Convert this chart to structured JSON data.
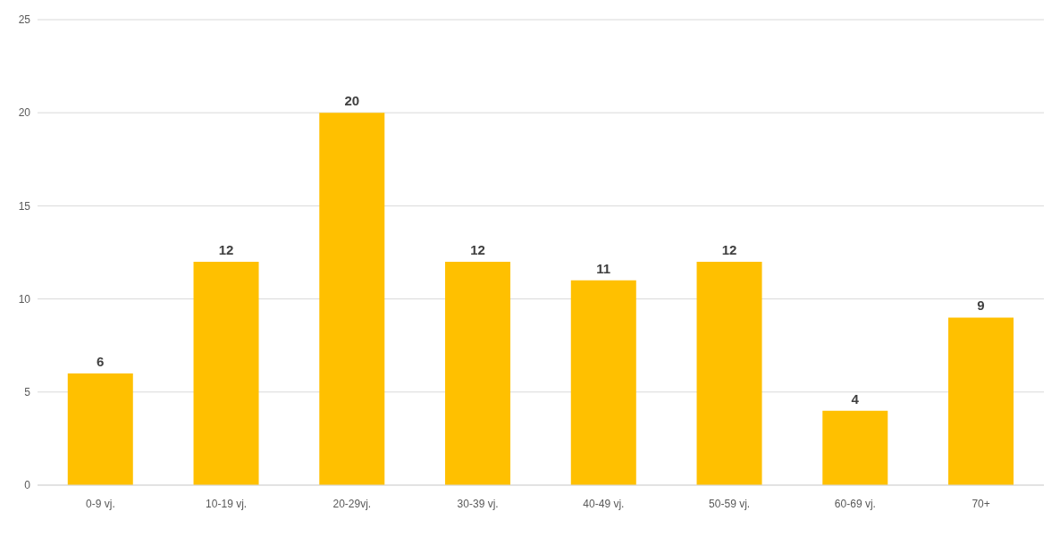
{
  "chart_data": {
    "type": "bar",
    "categories": [
      "0-9 vj.",
      "10-19 vj.",
      "20-29vj.",
      "30-39 vj.",
      "40-49 vj.",
      "50-59 vj.",
      "60-69 vj.",
      "70+"
    ],
    "values": [
      6,
      12,
      20,
      12,
      11,
      12,
      4,
      9
    ],
    "color": "#ffc000",
    "ylim": [
      0,
      25
    ],
    "yticks": [
      0,
      5,
      10,
      15,
      20,
      25
    ],
    "grid": "y",
    "data_labels": true
  }
}
